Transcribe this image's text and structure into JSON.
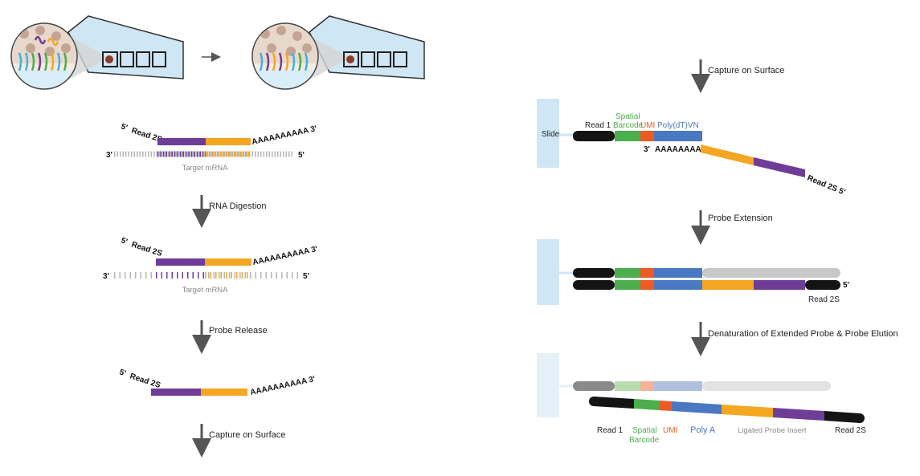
{
  "colors": {
    "purple": "#6f3c98",
    "orange": "#f5a623",
    "black": "#141414",
    "green": "#4cae4c",
    "red": "#ee5a24",
    "blue": "#4a78c2",
    "grey": "#c8c8c8",
    "slide": "#cfe6f5",
    "arrow": "#555555"
  },
  "left": {
    "probe1": {
      "five_prime": "5'",
      "read2s": "Read 2S",
      "polya": "AAAAAAAAAA 3'",
      "three_prime": "3'",
      "five_prime_end": "5'",
      "target": "Target mRNA"
    },
    "step_rna_digestion": "RNA Digestion",
    "probe2": {
      "five_prime": "5'",
      "read2s": "Read 2S",
      "polya": "AAAAAAAAAA 3'",
      "three_prime": "3'",
      "five_prime_end": "5'",
      "target": "Target mRNA"
    },
    "step_probe_release": "Probe Release",
    "probe3": {
      "five_prime": "5'",
      "read2s": "Read 2S",
      "polya": "AAAAAAAAAA 3'"
    },
    "step_capture": "Capture on Surface"
  },
  "right": {
    "step_capture": "Capture on Surface",
    "slide_label": "Slide",
    "read1": "Read 1",
    "spatial": "Spatial",
    "barcode": "Barcode",
    "umi": "UMI",
    "polydt": "Poly(dT)VN",
    "three_prime": "3'",
    "polya_capture": "AAAAAAAAA",
    "read2s_tail": "Read 2S 5'",
    "step_extension": "Probe Extension",
    "ext_five_prime": "5'",
    "ext_read2s": "Read 2S",
    "step_denaturation": "Denaturation of Extended Probe & Probe Elution",
    "final_labels": {
      "read1": "Read 1",
      "spatial": "Spatial",
      "barcode": "Barcode",
      "umi": "UMI",
      "polya": "Poly A",
      "insert": "Ligated Probe Insert",
      "read2s": "Read 2S"
    }
  }
}
